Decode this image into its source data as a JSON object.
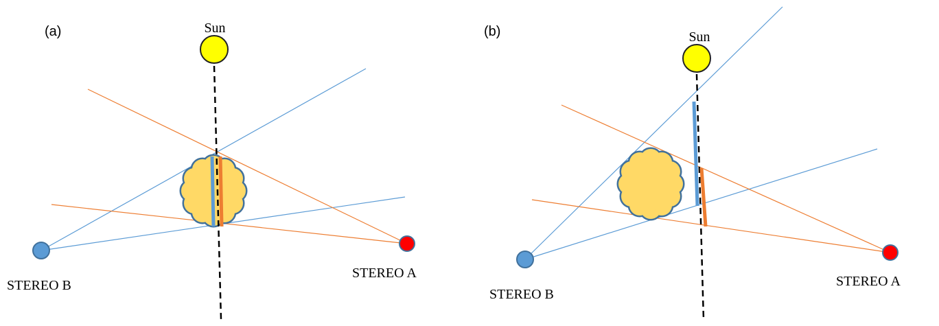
{
  "panels": [
    {
      "label": "(a)",
      "sun": "Sun",
      "stereo_b": "STEREO B",
      "stereo_a": "STEREO A"
    },
    {
      "label": "(b)",
      "sun": "Sun",
      "stereo_b": "STEREO B",
      "stereo_a": "STEREO A"
    }
  ]
}
